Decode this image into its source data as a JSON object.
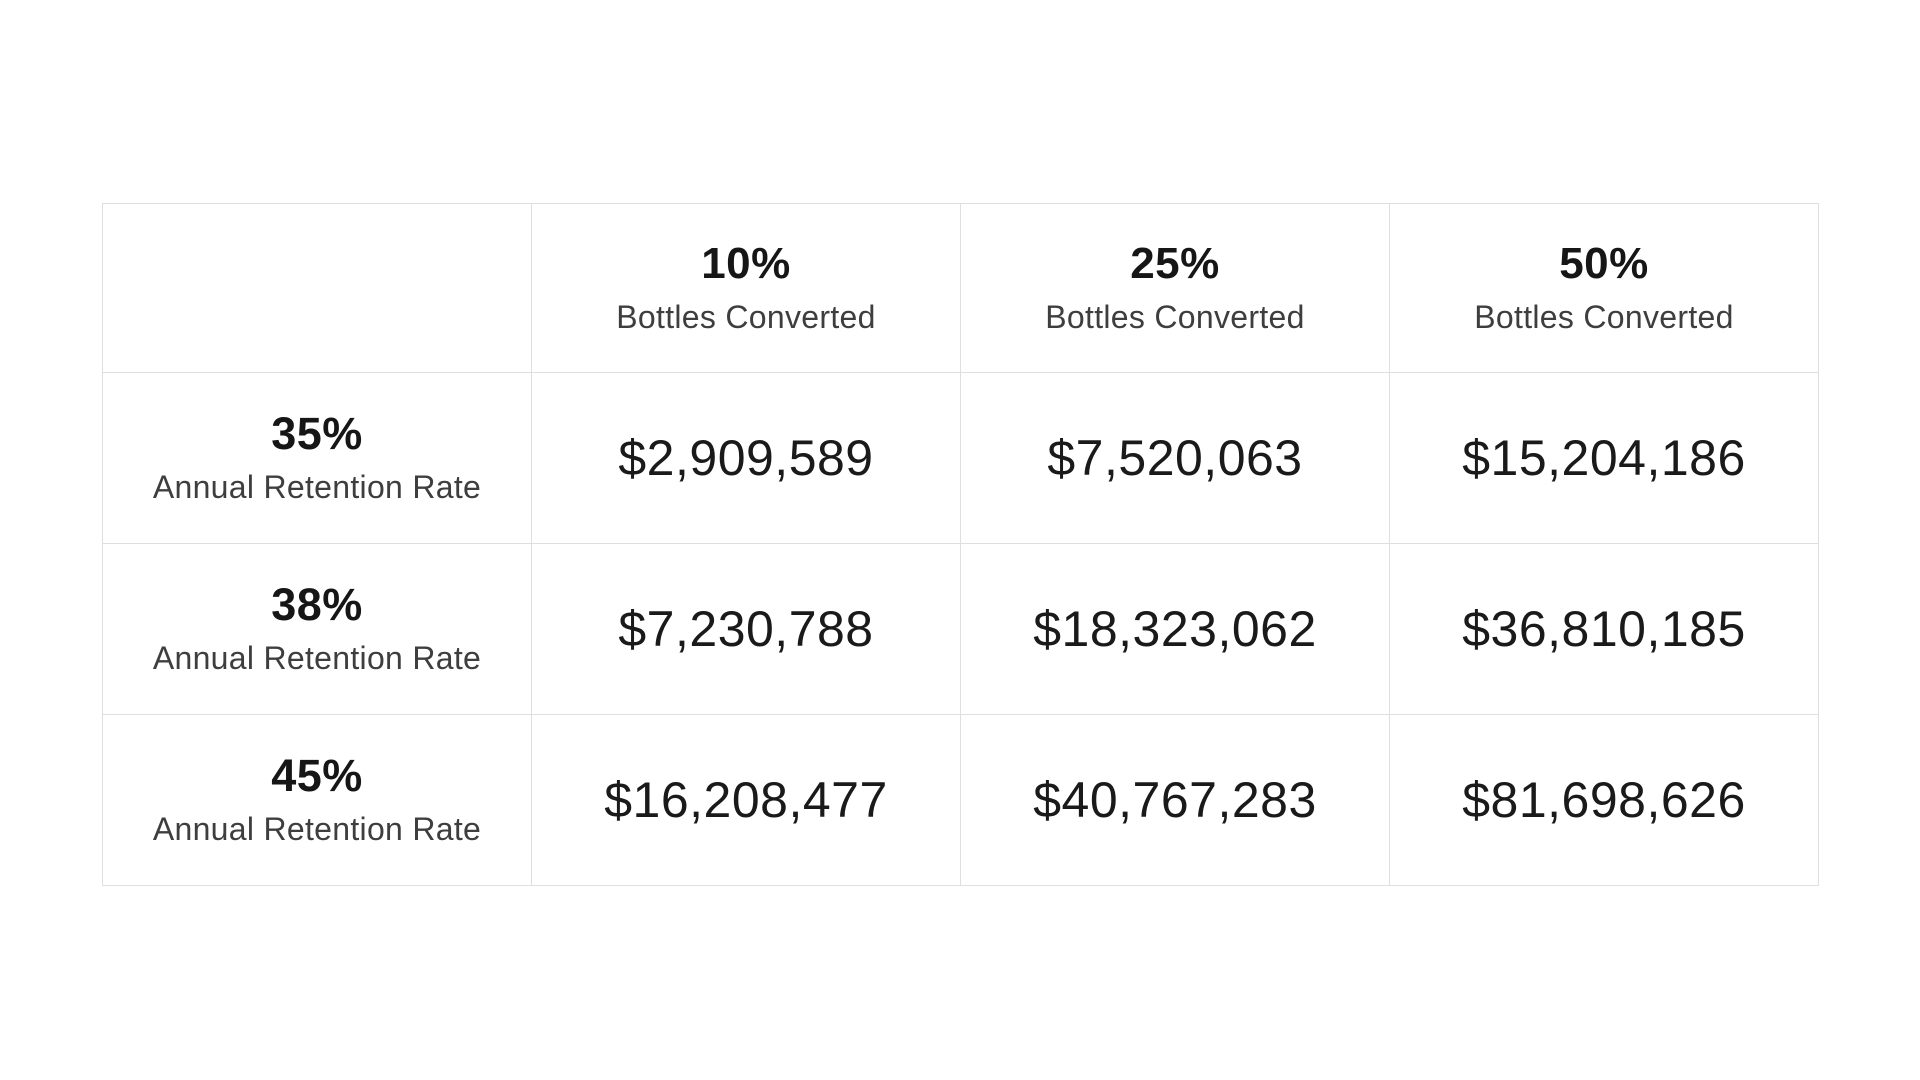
{
  "colors": {
    "background": "#ffffff",
    "border": "#dfdfdf",
    "numeral_text": "#161616",
    "label_text": "#3e3e3e",
    "money_text": "#1a1a1a"
  },
  "table": {
    "corner_label": "",
    "columns": [
      {
        "percent": "10%",
        "label": "Bottles Converted"
      },
      {
        "percent": "25%",
        "label": "Bottles Converted"
      },
      {
        "percent": "50%",
        "label": "Bottles Converted"
      }
    ],
    "rows": [
      {
        "percent": "35%",
        "label": "Annual Retention Rate",
        "values": [
          "$2,909,589",
          "$7,520,063",
          "$15,204,186"
        ]
      },
      {
        "percent": "38%",
        "label": "Annual Retention Rate",
        "values": [
          "$7,230,788",
          "$18,323,062",
          "$36,810,185"
        ]
      },
      {
        "percent": "45%",
        "label": "Annual Retention Rate",
        "values": [
          "$16,208,477",
          "$40,767,283",
          "$81,698,626"
        ]
      }
    ]
  },
  "chart_data": {
    "type": "table",
    "title": "",
    "column_headers": [
      "10% Bottles Converted",
      "25% Bottles Converted",
      "50% Bottles Converted"
    ],
    "row_headers": [
      "35% Annual Retention Rate",
      "38% Annual Retention Rate",
      "45% Annual Retention Rate"
    ],
    "values": [
      [
        2909589,
        7520063,
        15204186
      ],
      [
        7230788,
        18323062,
        36810185
      ],
      [
        16208477,
        40767283,
        81698626
      ]
    ],
    "values_formatted": [
      [
        "$2,909,589",
        "$7,520,063",
        "$15,204,186"
      ],
      [
        "$7,230,788",
        "$18,323,062",
        "$36,810,185"
      ],
      [
        "$16,208,477",
        "$40,767,283",
        "$81,698,626"
      ]
    ],
    "layout_hints": {
      "grid": "on",
      "border_color": "#dfdfdf",
      "corner_cell": "empty"
    }
  }
}
